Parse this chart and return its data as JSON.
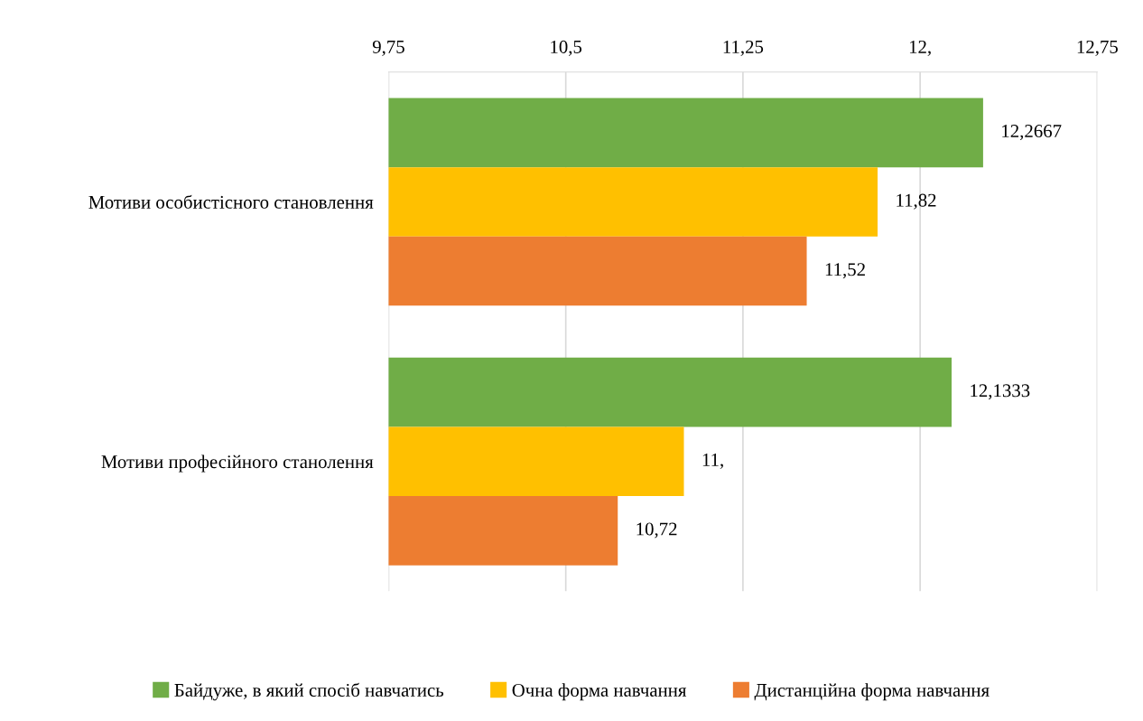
{
  "chart_data": {
    "type": "bar",
    "orientation": "horizontal",
    "categories": [
      "Мотиви особистісного становлення",
      "Мотиви професійного станолення"
    ],
    "series": [
      {
        "name": "Байдуже, в який спосіб навчатись",
        "color": "#70ad47",
        "values": [
          12.2667,
          12.1333
        ],
        "value_labels": [
          "12,2667",
          "12,1333"
        ]
      },
      {
        "name": "Очна форма навчання",
        "color": "#ffc000",
        "values": [
          11.82,
          11
        ],
        "value_labels": [
          "11,82",
          "11,"
        ]
      },
      {
        "name": "Дистанційна форма навчання",
        "color": "#ed7d31",
        "values": [
          11.52,
          10.72
        ],
        "value_labels": [
          "11,52",
          "10,72"
        ]
      }
    ],
    "xlim": [
      9.75,
      12.75
    ],
    "xticks": [
      {
        "value": 9.75,
        "label": "9,75"
      },
      {
        "value": 10.5,
        "label": "10,5"
      },
      {
        "value": 11.25,
        "label": "11,25"
      },
      {
        "value": 12,
        "label": "12,"
      },
      {
        "value": 12.75,
        "label": "12,75"
      }
    ],
    "grid": "x",
    "legend": "bottom"
  }
}
